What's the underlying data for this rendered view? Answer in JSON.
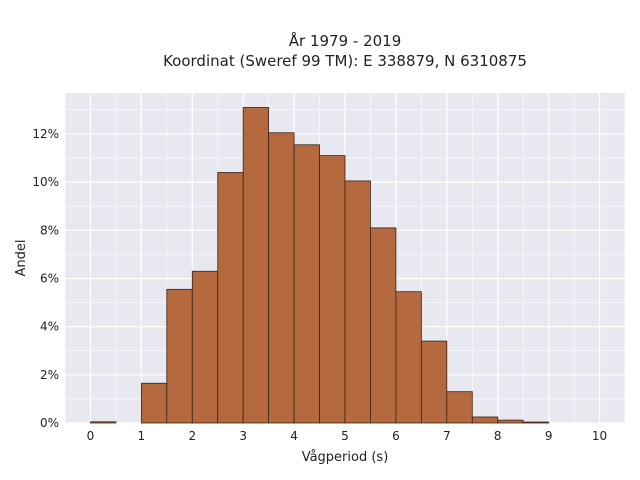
{
  "chart_data": {
    "type": "bar",
    "title_line1": "År 1979 - 2019",
    "title_line2": "Koordinat (Sweref 99 TM): E 338879, N 6310875",
    "xlabel": "Vågperiod (s)",
    "ylabel": "Andel",
    "xlim": [
      -0.5,
      10.5
    ],
    "ylim": [
      0,
      13.7
    ],
    "xticks": [
      0,
      1,
      2,
      3,
      4,
      5,
      6,
      7,
      8,
      9,
      10
    ],
    "yticks": [
      0,
      2,
      4,
      6,
      8,
      10,
      12
    ],
    "ytick_labels": [
      "0%",
      "2%",
      "4%",
      "6%",
      "8%",
      "10%",
      "12%"
    ],
    "grid": true,
    "bin_width": 0.5,
    "bins": [
      {
        "x0": 0.0,
        "x1": 0.5,
        "value": 0.05
      },
      {
        "x0": 0.5,
        "x1": 1.0,
        "value": 0.0
      },
      {
        "x0": 1.0,
        "x1": 1.5,
        "value": 1.65
      },
      {
        "x0": 1.5,
        "x1": 2.0,
        "value": 5.55
      },
      {
        "x0": 2.0,
        "x1": 2.5,
        "value": 6.3
      },
      {
        "x0": 2.5,
        "x1": 3.0,
        "value": 10.4
      },
      {
        "x0": 3.0,
        "x1": 3.5,
        "value": 13.1
      },
      {
        "x0": 3.5,
        "x1": 4.0,
        "value": 12.05
      },
      {
        "x0": 4.0,
        "x1": 4.5,
        "value": 11.55
      },
      {
        "x0": 4.5,
        "x1": 5.0,
        "value": 11.1
      },
      {
        "x0": 5.0,
        "x1": 5.5,
        "value": 10.05
      },
      {
        "x0": 5.5,
        "x1": 6.0,
        "value": 8.1
      },
      {
        "x0": 6.0,
        "x1": 6.5,
        "value": 5.45
      },
      {
        "x0": 6.5,
        "x1": 7.0,
        "value": 3.4
      },
      {
        "x0": 7.0,
        "x1": 7.5,
        "value": 1.3
      },
      {
        "x0": 7.5,
        "x1": 8.0,
        "value": 0.25
      },
      {
        "x0": 8.0,
        "x1": 8.5,
        "value": 0.12
      },
      {
        "x0": 8.5,
        "x1": 9.0,
        "value": 0.04
      }
    ],
    "colors": {
      "bar_fill": "#b4693f",
      "bar_edge": "#3a2418",
      "plot_bg": "#e8e8f0",
      "grid": "#ffffff"
    }
  }
}
